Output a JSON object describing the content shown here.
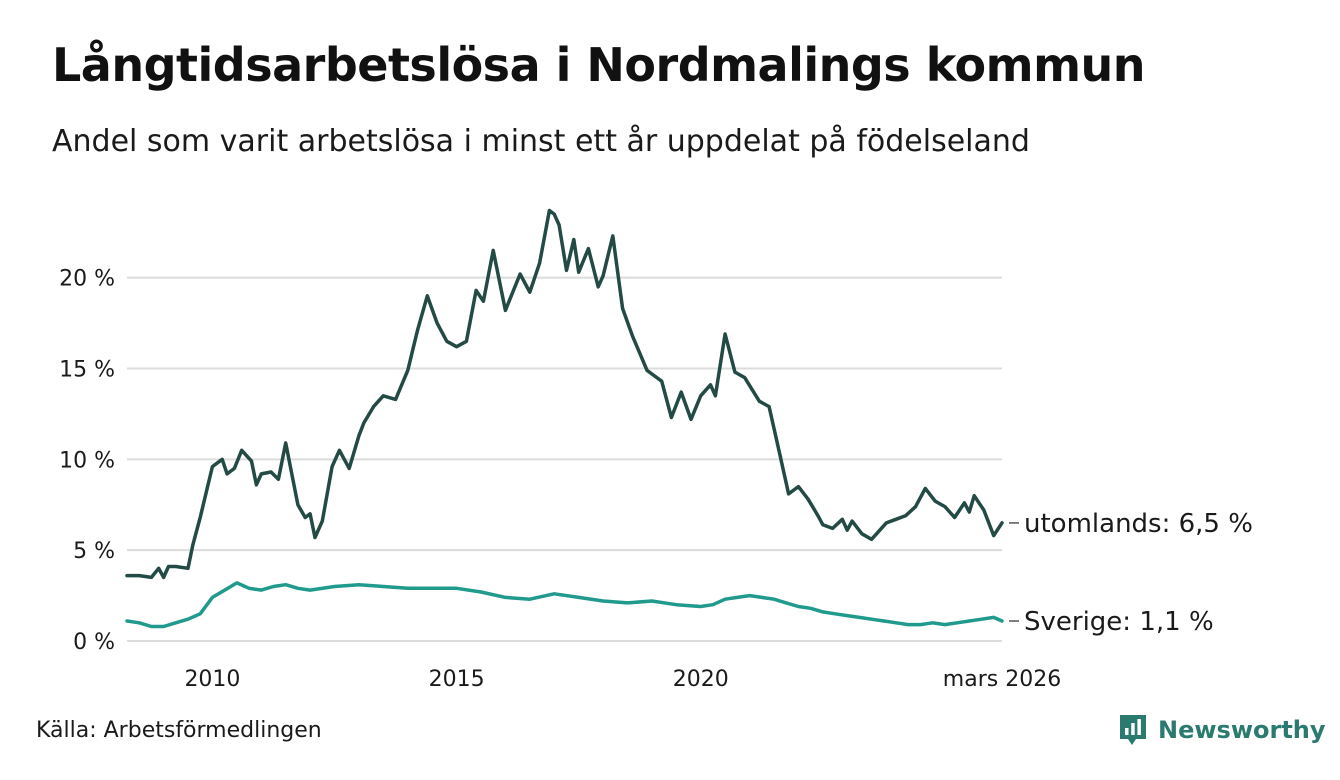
{
  "chart_data": {
    "type": "line",
    "title": "Långtidsarbetslösa i Nordmalings kommun",
    "subtitle": "Andel som varit arbetslösa i minst ett år uppdelat på födelseland",
    "xlabel": "",
    "ylabel": "",
    "x_range": [
      2008.25,
      2026.17
    ],
    "ylim": [
      0,
      24
    ],
    "y_ticks": [
      0,
      5,
      10,
      15,
      20
    ],
    "y_tick_labels": [
      "0 %",
      "5 %",
      "10 %",
      "15 %",
      "20 %"
    ],
    "x_ticks": [
      2010,
      2015,
      2020,
      2026.17
    ],
    "x_tick_labels": [
      "2010",
      "2015",
      "2020",
      "mars 2026"
    ],
    "grid": "horizontal",
    "series": [
      {
        "name": "utomlands",
        "label": "utomlands: 6,5 %",
        "color": "#234a44",
        "x": [
          2008.25,
          2008.5,
          2008.75,
          2008.9,
          2009.0,
          2009.1,
          2009.25,
          2009.5,
          2009.6,
          2009.75,
          2010.0,
          2010.2,
          2010.3,
          2010.45,
          2010.6,
          2010.8,
          2010.9,
          2011.0,
          2011.2,
          2011.35,
          2011.5,
          2011.75,
          2011.9,
          2012.0,
          2012.1,
          2012.25,
          2012.45,
          2012.6,
          2012.8,
          2013.0,
          2013.1,
          2013.3,
          2013.5,
          2013.75,
          2014.0,
          2014.2,
          2014.4,
          2014.6,
          2014.8,
          2015.0,
          2015.2,
          2015.4,
          2015.55,
          2015.75,
          2016.0,
          2016.3,
          2016.5,
          2016.7,
          2016.9,
          2017.0,
          2017.1,
          2017.25,
          2017.4,
          2017.5,
          2017.7,
          2017.9,
          2018.0,
          2018.2,
          2018.4,
          2018.6,
          2018.9,
          2019.0,
          2019.2,
          2019.4,
          2019.6,
          2019.8,
          2020.0,
          2020.2,
          2020.3,
          2020.5,
          2020.7,
          2020.9,
          2021.2,
          2021.4,
          2021.6,
          2021.8,
          2022.0,
          2022.2,
          2022.4,
          2022.5,
          2022.7,
          2022.9,
          2023.0,
          2023.1,
          2023.3,
          2023.5,
          2023.8,
          2024.0,
          2024.2,
          2024.4,
          2024.6,
          2024.8,
          2025.0,
          2025.2,
          2025.4,
          2025.5,
          2025.6,
          2025.8,
          2026.0,
          2026.17
        ],
        "values": [
          3.6,
          3.6,
          3.5,
          4.0,
          3.5,
          4.1,
          4.1,
          4.0,
          5.3,
          6.8,
          9.6,
          10.0,
          9.2,
          9.5,
          10.5,
          9.9,
          8.6,
          9.2,
          9.3,
          8.9,
          10.9,
          7.5,
          6.8,
          7.0,
          5.7,
          6.6,
          9.6,
          10.5,
          9.5,
          11.3,
          12.0,
          12.9,
          13.5,
          13.3,
          14.9,
          17.1,
          19.0,
          17.5,
          16.5,
          16.2,
          16.5,
          19.3,
          18.7,
          21.5,
          18.2,
          20.2,
          19.2,
          20.8,
          23.7,
          23.5,
          22.9,
          20.4,
          22.1,
          20.3,
          21.6,
          19.5,
          20.1,
          22.3,
          18.3,
          16.8,
          14.9,
          14.7,
          14.3,
          12.3,
          13.7,
          12.2,
          13.5,
          14.1,
          13.5,
          16.9,
          14.8,
          14.5,
          13.2,
          12.9,
          10.5,
          8.1,
          8.5,
          7.8,
          6.9,
          6.4,
          6.2,
          6.7,
          6.1,
          6.6,
          5.9,
          5.6,
          6.5,
          6.7,
          6.9,
          7.4,
          8.4,
          7.7,
          7.4,
          6.8,
          7.6,
          7.1,
          8.0,
          7.2,
          5.8,
          6.5
        ],
        "end_value": 6.5
      },
      {
        "name": "Sverige",
        "label": "Sverige: 1,1 %",
        "color": "#1f9a8c",
        "x": [
          2008.25,
          2008.5,
          2008.75,
          2009.0,
          2009.25,
          2009.5,
          2009.75,
          2010.0,
          2010.25,
          2010.5,
          2010.75,
          2011.0,
          2011.25,
          2011.5,
          2011.75,
          2012.0,
          2012.5,
          2013.0,
          2013.5,
          2014.0,
          2014.5,
          2015.0,
          2015.5,
          2016.0,
          2016.5,
          2017.0,
          2017.5,
          2018.0,
          2018.5,
          2019.0,
          2019.5,
          2020.0,
          2020.25,
          2020.5,
          2020.75,
          2021.0,
          2021.25,
          2021.5,
          2021.75,
          2022.0,
          2022.25,
          2022.5,
          2022.75,
          2023.0,
          2023.25,
          2023.5,
          2023.75,
          2024.0,
          2024.25,
          2024.5,
          2024.75,
          2025.0,
          2025.25,
          2025.5,
          2025.75,
          2026.0,
          2026.17
        ],
        "values": [
          1.1,
          1.0,
          0.8,
          0.8,
          1.0,
          1.2,
          1.5,
          2.4,
          2.8,
          3.2,
          2.9,
          2.8,
          3.0,
          3.1,
          2.9,
          2.8,
          3.0,
          3.1,
          3.0,
          2.9,
          2.9,
          2.9,
          2.7,
          2.4,
          2.3,
          2.6,
          2.4,
          2.2,
          2.1,
          2.2,
          2.0,
          1.9,
          2.0,
          2.3,
          2.4,
          2.5,
          2.4,
          2.3,
          2.1,
          1.9,
          1.8,
          1.6,
          1.5,
          1.4,
          1.3,
          1.2,
          1.1,
          1.0,
          0.9,
          0.9,
          1.0,
          0.9,
          1.0,
          1.1,
          1.2,
          1.3,
          1.1
        ],
        "end_value": 1.1
      }
    ]
  },
  "source": "Källa: Arbetsförmedlingen",
  "brand": {
    "name": "Newsworthy",
    "color": "#2a7a70",
    "icon": "newsworthy-logo-icon"
  }
}
